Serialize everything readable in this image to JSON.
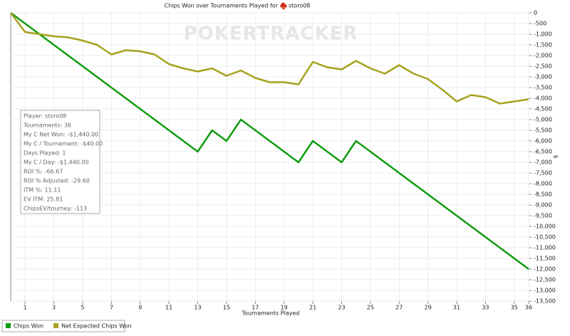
{
  "chart_data": {
    "type": "line",
    "title": "Chips Won over Tournaments Played for",
    "player": "storo08",
    "watermark": "POKERTRACKER",
    "x_label": "Tournaments Played",
    "y_label": "$",
    "x": [
      0,
      1,
      2,
      3,
      4,
      5,
      6,
      7,
      8,
      9,
      10,
      11,
      12,
      13,
      14,
      15,
      16,
      17,
      18,
      19,
      20,
      21,
      22,
      23,
      24,
      25,
      26,
      27,
      28,
      29,
      30,
      31,
      32,
      33,
      34,
      35,
      36
    ],
    "series": [
      {
        "name": "Chips Won",
        "color": "#119c11",
        "values": [
          0,
          -500,
          -1000,
          -1500,
          -2000,
          -2500,
          -3000,
          -3500,
          -4000,
          -4500,
          -5000,
          -5500,
          -6000,
          -6500,
          -5500,
          -6000,
          -5000,
          -5500,
          -6000,
          -6500,
          -7000,
          -6000,
          -6500,
          -7000,
          -6000,
          -6500,
          -7000,
          -7500,
          -8000,
          -8500,
          -9000,
          -9500,
          -10000,
          -10500,
          -11000,
          -11500,
          -12000
        ]
      },
      {
        "name": "Net Expected Chips Won",
        "color": "#a6a21e",
        "values": [
          0,
          -900,
          -1000,
          -1100,
          -1150,
          -1300,
          -1500,
          -1950,
          -1750,
          -1800,
          -1950,
          -2400,
          -2600,
          -2750,
          -2600,
          -2950,
          -2700,
          -3050,
          -3250,
          -3250,
          -3350,
          -2300,
          -2550,
          -2650,
          -2250,
          -2600,
          -2850,
          -2450,
          -2850,
          -3100,
          -3600,
          -4150,
          -3850,
          -3950,
          -4250,
          -4150,
          -4050
        ]
      }
    ],
    "xlim": [
      0,
      36
    ],
    "xticks": [
      1,
      3,
      5,
      7,
      9,
      11,
      13,
      15,
      17,
      19,
      21,
      23,
      25,
      27,
      29,
      31,
      33,
      35,
      36
    ],
    "ylim": [
      -13500,
      0
    ],
    "yticks": [
      0,
      -500,
      {
        "value": -1000,
        "label": "-1,000"
      },
      {
        "value": -1500,
        "label": "-1,500"
      },
      {
        "value": -2000,
        "label": "-2,000"
      },
      {
        "value": -2500,
        "label": "-2,500"
      },
      {
        "value": -3000,
        "label": "-3,000"
      },
      {
        "value": -3500,
        "label": "-3,500"
      },
      {
        "value": -4000,
        "label": "-4,000"
      },
      {
        "value": -4500,
        "label": "-4,500"
      },
      {
        "value": -5000,
        "label": "-5,000"
      },
      {
        "value": -5500,
        "label": "-5,500"
      },
      {
        "value": -6000,
        "label": "-6,000"
      },
      {
        "value": -6500,
        "label": "-6,500"
      },
      {
        "value": -7000,
        "label": "-7,000"
      },
      {
        "value": -7500,
        "label": "-7,500"
      },
      {
        "value": -8000,
        "label": "-8,000"
      },
      {
        "value": -8500,
        "label": "-8,500"
      },
      {
        "value": -9000,
        "label": "-9,000"
      },
      {
        "value": -9500,
        "label": "-9,500"
      },
      {
        "value": -10000,
        "label": "-10,000"
      },
      {
        "value": -10500,
        "label": "-10,500"
      },
      {
        "value": -11000,
        "label": "-11,000"
      },
      {
        "value": -11500,
        "label": "-11,500"
      },
      {
        "value": -12000,
        "label": "-12,000"
      },
      {
        "value": -12500,
        "label": "-12,500"
      },
      {
        "value": -13000,
        "label": "-13,000"
      },
      {
        "value": -13500,
        "label": "-13,500"
      }
    ],
    "grid": true,
    "stats": [
      "Player: storo08",
      "Tournaments: 36",
      "My C Net Won: -$1,440.00",
      "My C / Tournament: -$40.00",
      "Days Played: 1",
      "My C / Day: -$1,440.00",
      "ROI %: -66.67",
      "ROI % Adjusted: -29.60",
      "ITM %: 11.11",
      "EV ITM: 25.81",
      "ChipsEV/tourney: -113"
    ]
  }
}
